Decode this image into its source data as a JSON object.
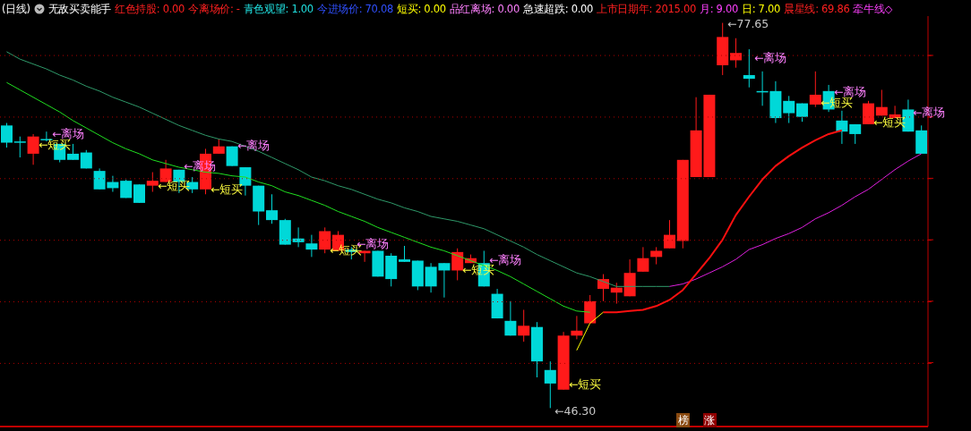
{
  "chart_data": {
    "type": "candlestick",
    "title": "(日线)",
    "subtitle": "无敌买卖能手",
    "categories": [
      null,
      null,
      null,
      null,
      null,
      null,
      null,
      null,
      null,
      null,
      null,
      null,
      null,
      null,
      null,
      null,
      null,
      null,
      null,
      null,
      null,
      null,
      null,
      null,
      null,
      null,
      null,
      null,
      null,
      null,
      null,
      null,
      null,
      null,
      null,
      null,
      null,
      null,
      null,
      null,
      null,
      null,
      null,
      null,
      null,
      null,
      null,
      null,
      null,
      null,
      null,
      null,
      null,
      null,
      null,
      null,
      null,
      null,
      null,
      null,
      null,
      null,
      null,
      null,
      null,
      null,
      null,
      null,
      null,
      null
    ],
    "ohlc": [
      [
        69.3,
        69.5,
        67.5,
        67.9
      ],
      [
        68.0,
        68.4,
        66.7,
        67.9
      ],
      [
        67.0,
        68.6,
        66.1,
        68.4
      ],
      [
        68.2,
        68.8,
        68.0,
        68.1
      ],
      [
        67.8,
        67.8,
        66.3,
        66.5
      ],
      [
        67.0,
        67.8,
        66.5,
        66.5
      ],
      [
        67.1,
        67.3,
        65.8,
        65.8
      ],
      [
        65.6,
        65.8,
        64.1,
        64.1
      ],
      [
        64.7,
        65.2,
        63.9,
        64.2
      ],
      [
        64.8,
        64.9,
        63.4,
        63.4
      ],
      [
        64.5,
        64.5,
        63.0,
        63.0
      ],
      [
        64.4,
        65.5,
        63.9,
        64.8
      ],
      [
        64.7,
        66.5,
        64.7,
        65.8
      ],
      [
        65.7,
        65.7,
        63.8,
        64.7
      ],
      [
        64.7,
        65.1,
        63.8,
        64.1
      ],
      [
        64.1,
        67.4,
        63.7,
        67.0
      ],
      [
        67.0,
        68.2,
        67.0,
        67.6
      ],
      [
        67.6,
        67.6,
        66.0,
        66.0
      ],
      [
        65.9,
        65.9,
        63.6,
        64.4
      ],
      [
        64.4,
        64.4,
        61.2,
        62.3
      ],
      [
        62.4,
        63.7,
        61.3,
        61.6
      ],
      [
        61.6,
        61.7,
        59.6,
        59.6
      ],
      [
        60.1,
        61.0,
        59.4,
        59.8
      ],
      [
        59.7,
        60.4,
        58.6,
        59.2
      ],
      [
        59.2,
        61.0,
        58.9,
        60.7
      ],
      [
        59.1,
        60.7,
        59.1,
        60.4
      ],
      [
        59.2,
        59.4,
        58.4,
        59.0
      ],
      [
        58.9,
        59.1,
        58.2,
        59.1
      ],
      [
        59.1,
        59.1,
        57.0,
        57.0
      ],
      [
        58.7,
        58.9,
        56.2,
        56.8
      ],
      [
        58.4,
        59.5,
        58.2,
        58.2
      ],
      [
        58.3,
        58.3,
        55.9,
        56.2
      ],
      [
        57.8,
        58.1,
        55.7,
        56.2
      ],
      [
        58.1,
        58.1,
        55.3,
        57.5
      ],
      [
        57.5,
        59.3,
        56.7,
        59.0
      ],
      [
        58.1,
        58.8,
        58.1,
        58.5
      ],
      [
        58.1,
        59.1,
        56.2,
        56.2
      ],
      [
        55.6,
        56.0,
        53.6,
        53.6
      ],
      [
        53.4,
        55.0,
        52.2,
        52.2
      ],
      [
        52.2,
        54.3,
        51.7,
        53.0
      ],
      [
        52.9,
        53.3,
        48.8,
        50.1
      ],
      [
        49.4,
        50.1,
        46.3,
        48.3
      ],
      [
        47.8,
        52.5,
        47.8,
        52.2
      ],
      [
        52.2,
        53.8,
        51.9,
        52.6
      ],
      [
        53.2,
        55.5,
        53.2,
        55.0
      ],
      [
        56.0,
        57.2,
        55.0,
        56.8
      ],
      [
        55.7,
        56.5,
        54.8,
        56.1
      ],
      [
        55.4,
        58.4,
        55.4,
        57.3
      ],
      [
        57.4,
        59.4,
        57.4,
        58.5
      ],
      [
        58.6,
        59.4,
        58.0,
        59.1
      ],
      [
        59.3,
        61.6,
        59.3,
        60.4
      ],
      [
        59.9,
        66.5,
        59.3,
        66.5
      ],
      [
        65.1,
        71.6,
        65.1,
        68.9
      ],
      [
        65.1,
        71.8,
        65.1,
        71.8
      ],
      [
        74.2,
        77.65,
        73.4,
        76.5
      ],
      [
        74.6,
        76.4,
        74.0,
        75.2
      ],
      [
        73.4,
        75.5,
        72.4,
        73.1
      ],
      [
        72.1,
        73.7,
        70.9,
        72.0
      ],
      [
        72.1,
        72.9,
        69.5,
        69.9
      ],
      [
        71.3,
        71.7,
        69.5,
        70.3
      ],
      [
        71.1,
        71.1,
        69.6,
        70.0
      ],
      [
        71.0,
        73.7,
        70.8,
        71.8
      ],
      [
        72.1,
        72.6,
        70.4,
        70.6
      ],
      [
        69.7,
        70.5,
        67.8,
        68.8
      ],
      [
        69.4,
        69.4,
        67.8,
        68.6
      ],
      [
        69.4,
        71.3,
        69.4,
        71.1
      ],
      [
        70.1,
        72.2,
        70.1,
        70.8
      ],
      [
        69.9,
        70.9,
        69.9,
        70.2
      ],
      [
        70.6,
        71.4,
        68.8,
        68.8
      ],
      [
        68.9,
        69.3,
        67.0,
        67.0
      ]
    ],
    "series": [
      {
        "type": "line",
        "color": "#2f9a6a",
        "values": [
          75.3,
          74.7,
          74.3,
          73.9,
          73.4,
          73.0,
          72.5,
          72.1,
          71.6,
          71.2,
          70.8,
          70.3,
          69.8,
          69.3,
          68.9,
          68.5,
          68.2,
          68.0,
          67.6,
          67.2,
          66.7,
          66.2,
          65.7,
          65.1,
          64.8,
          64.4,
          64.1,
          63.7,
          63.3,
          63.0,
          62.6,
          62.3,
          61.9,
          61.7,
          61.5,
          61.2,
          60.9,
          60.4,
          59.9,
          59.4,
          58.8,
          58.3,
          57.8,
          57.3,
          57.0,
          56.6,
          56.2,
          56.2,
          56.2,
          56.2,
          56.2,
          null,
          null,
          null,
          null,
          null,
          null,
          null,
          null,
          null,
          null,
          null,
          null,
          null,
          null,
          null,
          null,
          null,
          null,
          null
        ]
      },
      {
        "type": "line",
        "color": "#e020e0",
        "values": [
          null,
          null,
          null,
          null,
          null,
          null,
          null,
          null,
          null,
          null,
          null,
          null,
          null,
          null,
          null,
          null,
          null,
          null,
          null,
          null,
          null,
          null,
          null,
          null,
          null,
          null,
          null,
          null,
          null,
          null,
          null,
          null,
          null,
          null,
          null,
          null,
          null,
          null,
          null,
          null,
          null,
          null,
          null,
          null,
          null,
          null,
          null,
          null,
          null,
          null,
          56.2,
          56.4,
          56.8,
          57.3,
          57.8,
          58.4,
          59.2,
          59.6,
          60.1,
          60.5,
          61.0,
          61.7,
          62.2,
          62.8,
          63.5,
          64.1,
          64.9,
          65.7,
          66.4,
          67.0
        ]
      },
      {
        "type": "line",
        "color": "#20e020",
        "values": [
          72.8,
          72.2,
          71.6,
          71.0,
          70.4,
          69.7,
          69.1,
          68.5,
          67.9,
          67.4,
          67.0,
          66.5,
          66.2,
          65.9,
          65.7,
          65.5,
          65.4,
          65.2,
          65.1,
          64.7,
          64.4,
          63.9,
          63.6,
          63.2,
          62.8,
          62.3,
          61.9,
          61.5,
          61.0,
          60.6,
          60.2,
          59.8,
          59.4,
          59.1,
          58.7,
          58.3,
          57.9,
          57.5,
          57.0,
          56.4,
          55.8,
          55.2,
          54.6,
          54.2,
          54.1,
          null,
          null,
          null,
          null,
          null,
          null,
          null,
          null,
          null,
          null,
          null,
          null,
          null,
          null,
          null,
          null,
          null,
          null,
          null,
          null,
          null,
          null,
          null,
          null,
          null
        ]
      },
      {
        "type": "line",
        "color": "#ff1010",
        "values": [
          null,
          null,
          null,
          null,
          null,
          null,
          null,
          null,
          null,
          null,
          null,
          null,
          null,
          null,
          null,
          null,
          null,
          null,
          null,
          null,
          null,
          null,
          null,
          null,
          null,
          null,
          null,
          null,
          null,
          null,
          null,
          null,
          null,
          null,
          null,
          null,
          null,
          null,
          null,
          null,
          null,
          null,
          null,
          null,
          null,
          54.1,
          54.1,
          54.2,
          54.3,
          54.6,
          55.1,
          55.9,
          57.2,
          58.5,
          60.0,
          62.0,
          63.5,
          64.9,
          66.0,
          66.8,
          67.5,
          68.1,
          68.6,
          68.9,
          null,
          null,
          null,
          null,
          null,
          null
        ]
      },
      {
        "type": "line",
        "color": "#ffff00",
        "values": [
          null,
          null,
          null,
          null,
          null,
          null,
          null,
          null,
          null,
          null,
          null,
          null,
          null,
          null,
          null,
          null,
          null,
          null,
          null,
          null,
          null,
          null,
          null,
          null,
          null,
          null,
          null,
          null,
          null,
          null,
          null,
          null,
          null,
          null,
          null,
          null,
          null,
          null,
          null,
          null,
          null,
          null,
          null,
          51.0,
          53.2,
          54.1,
          null,
          null,
          null,
          null,
          null,
          null,
          null,
          null,
          null,
          null,
          null,
          null,
          null,
          null,
          null,
          null,
          null,
          null,
          null,
          null,
          null,
          null,
          null,
          null
        ]
      }
    ],
    "ylim": [
      44.8,
      78.2
    ],
    "yticks": [
      {
        "value": 50,
        "label": null
      },
      {
        "value": 55,
        "label": null
      },
      {
        "value": 60,
        "label": null
      },
      {
        "value": 65,
        "label": null
      },
      {
        "value": 70,
        "label": null
      },
      {
        "value": 75,
        "label": null
      }
    ],
    "grid": "y",
    "annotations": [
      "红色持股: 0.00",
      "今离场价: -",
      "青色观望: 1.00",
      "今进场价: 70.08",
      "短买: 0.00",
      "品红离场: 0.00",
      "急速超跌: 0.00",
      "上市日期年: 2015.00",
      "月: 9.00",
      "日: 7.00",
      "晨星线: 69.86",
      "牵牛线◇",
      "←离场",
      "←短买",
      "←短买",
      "←离场",
      "←短买",
      "←离场",
      "←短买",
      "←离场",
      "←短买",
      "←离场",
      "←短买",
      "←离场",
      "←离场",
      "←短买",
      "←短买",
      "←离场",
      "←77.65",
      "←46.30",
      "榜",
      "涨"
    ]
  }
}
